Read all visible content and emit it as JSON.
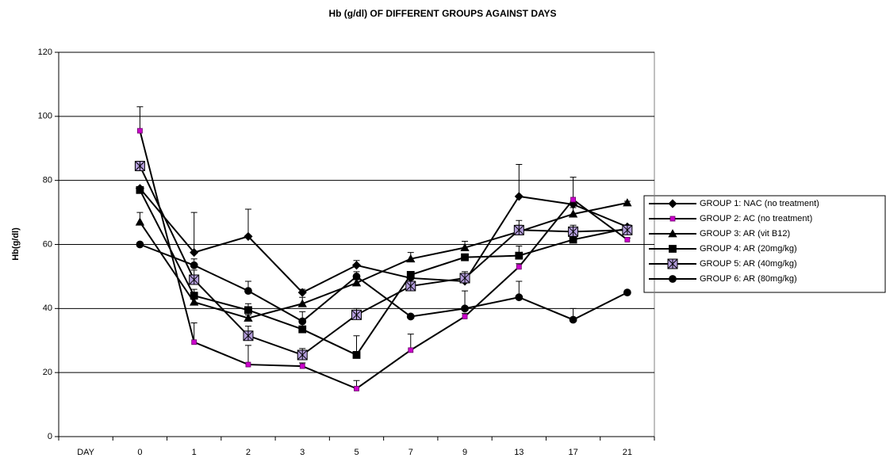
{
  "chart_data": {
    "type": "line",
    "title": "Hb (g/dl) OF DIFFERENT GROUPS AGAINST DAYS",
    "y_label": "Hb(g/dl)",
    "categories": [
      "DAY",
      "0",
      "1",
      "2",
      "3",
      "5",
      "7",
      "9",
      "13",
      "17",
      "21"
    ],
    "ylim": [
      0,
      120
    ],
    "yticks": [
      0,
      20,
      40,
      60,
      80,
      100,
      120
    ],
    "grid": true,
    "legend": "right",
    "series": [
      {
        "name": "GROUP 1: NAC (no treatment)",
        "color": "#000000",
        "marker": "diamond",
        "marker_color": "#000000",
        "values": [
          null,
          77.5,
          57.5,
          62.5,
          45,
          53.5,
          49.5,
          48.5,
          75,
          72.5,
          65.5
        ],
        "errors": [
          null,
          0,
          12.5,
          8.5,
          1,
          1.5,
          1,
          1,
          10,
          1,
          0.5
        ]
      },
      {
        "name": "GROUP 2: AC (no treatment)",
        "color": "#000000",
        "marker": "small-square",
        "marker_color": "#cc00cc",
        "values": [
          null,
          95.5,
          29.5,
          22.5,
          22,
          15,
          27,
          37.5,
          53,
          74,
          61.5
        ],
        "errors": [
          null,
          7.5,
          6,
          6,
          1,
          2.5,
          5,
          1,
          1,
          7,
          0.5
        ]
      },
      {
        "name": "GROUP 3: AR (vit B12)",
        "color": "#000000",
        "marker": "triangle",
        "marker_color": "#000000",
        "values": [
          null,
          67,
          42,
          37,
          41.5,
          48,
          55.5,
          59,
          64,
          69.5,
          73
        ],
        "errors": [
          null,
          3,
          1,
          1,
          2,
          1,
          2,
          2,
          2,
          2,
          0.5
        ]
      },
      {
        "name": "GROUP 4: AR (20mg/kg)",
        "color": "#000000",
        "marker": "square",
        "marker_color": "#000000",
        "values": [
          null,
          77,
          44,
          39.5,
          33.5,
          25.5,
          50.5,
          56,
          56.5,
          61.5,
          65
        ],
        "errors": [
          null,
          1,
          2,
          2,
          2,
          6,
          1,
          1,
          3,
          2,
          1
        ]
      },
      {
        "name": "GROUP 5: AR (40mg/kg)",
        "color": "#000000",
        "marker": "star",
        "marker_color": "#b39ddb",
        "values": [
          null,
          84.5,
          49,
          31.5,
          25.5,
          38,
          47,
          49.5,
          64.5,
          64,
          64.5
        ],
        "errors": [
          null,
          1,
          3,
          3,
          2,
          2,
          2,
          2,
          3,
          2,
          1
        ]
      },
      {
        "name": "GROUP 6: AR (80mg/kg)",
        "color": "#000000",
        "marker": "circle",
        "marker_color": "#000000",
        "values": [
          null,
          60,
          53.5,
          45.5,
          36,
          50,
          37.5,
          40,
          43.5,
          36.5,
          45
        ],
        "errors": [
          null,
          0,
          2,
          3,
          3,
          1.5,
          0,
          5.5,
          5,
          3.5,
          0.5
        ]
      }
    ]
  }
}
